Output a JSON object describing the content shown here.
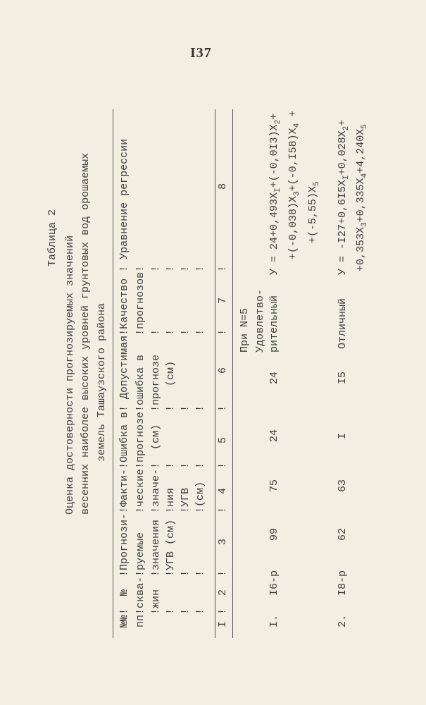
{
  "page_number": "I37",
  "table_label": "Таблица 2",
  "title_lines": [
    "Оценка достоверности прогнозируемых значений",
    "весенних наиболее высоких уровней грунтовых вод орошаемых",
    "земель Ташаузского района"
  ],
  "header_rows": [
    "№№!  №  !Прогнози-!Факти-!Ошибка в! Допустимая!Качество ! Уравнение регрессии",
    "пп!сква-!руемые   !ческие!прогнозе!ошибка в   !прогнозов!",
    "  !жин  !значения !значе-!  (см)  !прогнозе   !         !",
    "  !     !УГВ (см) !ния   !        !   (см)    !         !",
    "  !     !         !УГВ   !        !           !         !",
    "  !     !         !(см)  !        !           !         !"
  ],
  "number_row": "I !  2  !    3    !  4   !   5    !     6     !    7    !            8",
  "note": "При N=5",
  "rows": [
    {
      "num": "I.",
      "well": "I6-р",
      "forecast": "99",
      "actual": "75",
      "error": "24",
      "allowed_error": "24",
      "quality_lines": [
        "Удовлетво-",
        "рительный"
      ],
      "equation": [
        [
          [
            "У = 24+0,493X",
            "I"
          ],
          [
            "+(-0,0I3)X",
            "2"
          ],
          [
            "+",
            ""
          ]
        ],
        [
          [
            "+(-0,038)X",
            "3"
          ],
          [
            "+(-0,I58)X",
            "4"
          ],
          [
            " +",
            ""
          ]
        ],
        [
          [
            "+(-5,55)X",
            "5"
          ]
        ]
      ]
    },
    {
      "num": "2.",
      "well": "I8-р",
      "forecast": "62",
      "actual": "63",
      "error": "I",
      "allowed_error": "I5",
      "quality_lines": [
        "Отличный"
      ],
      "equation": [
        [
          [
            "У = -I27+0,6I5X",
            "I"
          ],
          [
            "+0,028X",
            "2"
          ],
          [
            "+",
            ""
          ]
        ],
        [
          [
            "+0,353X",
            "3"
          ],
          [
            "+0,335X",
            "4"
          ],
          [
            "+4,240X",
            "5"
          ]
        ]
      ]
    }
  ]
}
